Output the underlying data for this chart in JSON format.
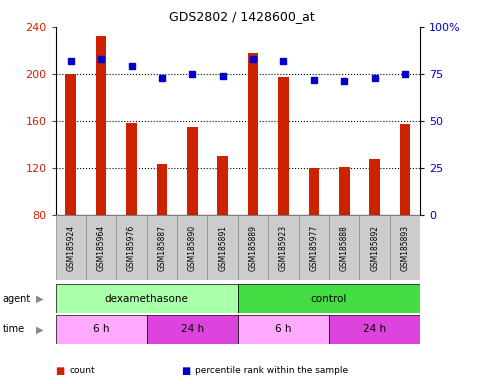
{
  "title": "GDS2802 / 1428600_at",
  "samples": [
    "GSM185924",
    "GSM185964",
    "GSM185976",
    "GSM185887",
    "GSM185890",
    "GSM185891",
    "GSM185889",
    "GSM185923",
    "GSM185977",
    "GSM185888",
    "GSM185892",
    "GSM185893"
  ],
  "counts": [
    200,
    232,
    158,
    123,
    155,
    130,
    218,
    197,
    120,
    121,
    128,
    157
  ],
  "percentiles": [
    82,
    83,
    79,
    73,
    75,
    74,
    83,
    82,
    72,
    71,
    73,
    75
  ],
  "ylim_left": [
    80,
    240
  ],
  "yticks_left": [
    80,
    120,
    160,
    200,
    240
  ],
  "ylim_right": [
    0,
    100
  ],
  "yticks_right": [
    0,
    25,
    50,
    75,
    100
  ],
  "bar_color": "#cc2200",
  "dot_color": "#0000cc",
  "agent_groups": [
    {
      "label": "dexamethasone",
      "start": 0,
      "end": 6,
      "color": "#aaffaa"
    },
    {
      "label": "control",
      "start": 6,
      "end": 12,
      "color": "#44dd44"
    }
  ],
  "time_groups": [
    {
      "label": "6 h",
      "start": 0,
      "end": 3,
      "color": "#ffaaff"
    },
    {
      "label": "24 h",
      "start": 3,
      "end": 6,
      "color": "#dd44dd"
    },
    {
      "label": "6 h",
      "start": 6,
      "end": 9,
      "color": "#ffaaff"
    },
    {
      "label": "24 h",
      "start": 9,
      "end": 12,
      "color": "#dd44dd"
    }
  ],
  "legend_items": [
    {
      "color": "#cc2200",
      "label": "count"
    },
    {
      "color": "#0000cc",
      "label": "percentile rank within the sample"
    }
  ],
  "tick_label_color_left": "#cc2200",
  "tick_label_color_right": "#0000cc",
  "bar_width": 0.35,
  "dot_size": 4,
  "gridline_vals": [
    120,
    160,
    200
  ],
  "label_area_facecolor": "#cccccc",
  "label_area_edgecolor": "#888888"
}
